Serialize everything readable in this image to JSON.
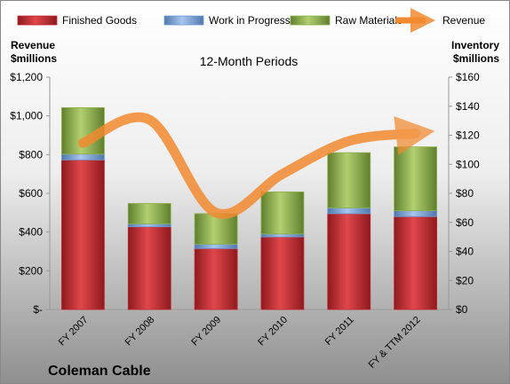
{
  "chart_data": {
    "type": "bar",
    "title": "12-Month Periods",
    "company": "Coleman Cable",
    "left_axis_label": [
      "Revenue",
      "$millions"
    ],
    "right_axis_label": [
      "Inventory",
      "$millions"
    ],
    "categories": [
      "FY 2007",
      "FY 2008",
      "FY 2009",
      "FY 2010",
      "FY 2011",
      "FY & TTM 2012"
    ],
    "left_ticks": [
      "$-",
      "$200",
      "$400",
      "$600",
      "$800",
      "$1,000",
      "$1,200"
    ],
    "right_ticks": [
      "$0",
      "$20",
      "$40",
      "$60",
      "$80",
      "$100",
      "$120",
      "$140",
      "$160"
    ],
    "left_ylim": [
      0,
      1200
    ],
    "right_ylim": [
      0,
      160
    ],
    "grid": false,
    "legend_position": "top",
    "stacked": true,
    "series": [
      {
        "name": "Finished Goods",
        "axis": "right",
        "color": "#c0282d",
        "values": [
          103,
          57,
          42,
          50,
          66,
          64
        ]
      },
      {
        "name": "Work in Progress",
        "axis": "right",
        "color": "#6f9bd4",
        "values": [
          4,
          2,
          3,
          2,
          4,
          4
        ]
      },
      {
        "name": "Raw Materials",
        "axis": "right",
        "color": "#8db04b",
        "values": [
          32,
          14,
          21,
          29,
          38,
          44
        ]
      }
    ],
    "line_series": [
      {
        "name": "Revenue",
        "axis": "left",
        "color": "#f28a30",
        "values": [
          860,
          980,
          500,
          700,
          870,
          910
        ]
      }
    ]
  }
}
